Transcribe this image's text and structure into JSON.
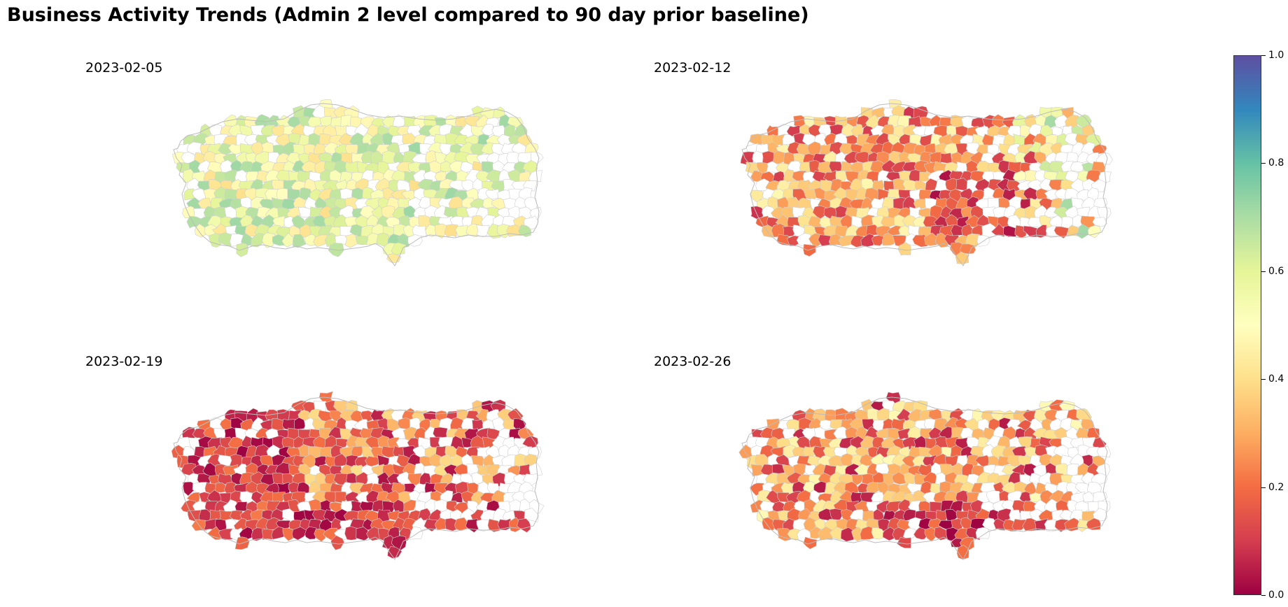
{
  "title": "Business Activity Trends (Admin 2 level compared to 90 day prior baseline)",
  "colorbar": {
    "ticks": [
      "0.0",
      "0.2",
      "0.4",
      "0.6",
      "0.8",
      "1.0"
    ],
    "colormap": [
      "#9e0142",
      "#d53e4f",
      "#f46d43",
      "#fdae61",
      "#fee08b",
      "#ffffbf",
      "#e6f598",
      "#abdda4",
      "#66c2a5",
      "#3288bd",
      "#5e4fa2"
    ]
  },
  "panels": [
    {
      "date": "2023-02-05",
      "description": "mostly 0.4-0.7 values, yellow/light-green"
    },
    {
      "date": "2023-02-12",
      "description": "mostly 0.1-0.4, red/orange with dark red cluster in south-east"
    },
    {
      "date": "2023-02-19",
      "description": "mostly 0.0-0.3, dark red across west and south"
    },
    {
      "date": "2023-02-26",
      "description": "mixed 0.0-0.4, red/orange"
    }
  ]
}
